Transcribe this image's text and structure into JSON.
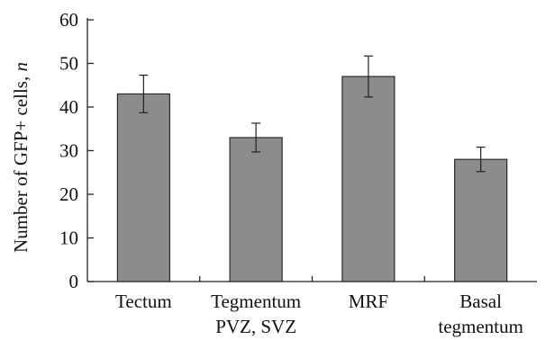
{
  "chart_data": {
    "type": "bar",
    "categories": [
      [
        "Tectum"
      ],
      [
        "Tegmentum",
        "PVZ, SVZ"
      ],
      [
        "MRF"
      ],
      [
        "Basal",
        "tegmentum"
      ]
    ],
    "values": [
      43,
      33,
      47,
      28
    ],
    "errors": [
      4.3,
      3.3,
      4.7,
      2.8
    ],
    "ylabel": "Number of GFP+ cells, ",
    "ylabel_var": "n",
    "ylim": [
      0,
      60
    ],
    "yticks": [
      0,
      10,
      20,
      30,
      40,
      50,
      60
    ],
    "grid": false,
    "bar_color": "#8c8c8c"
  }
}
